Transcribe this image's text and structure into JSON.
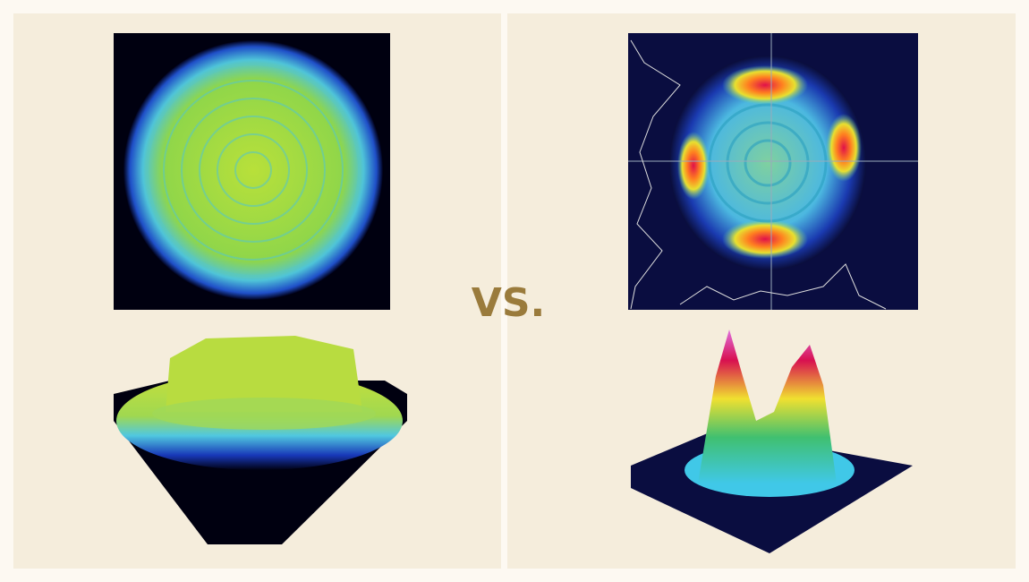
{
  "label": "VS."
}
